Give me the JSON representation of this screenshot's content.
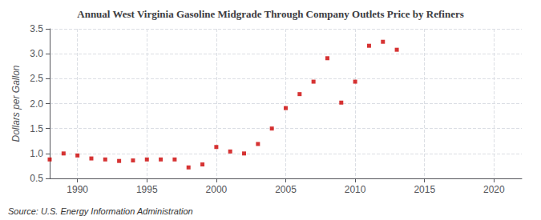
{
  "chart_data": {
    "type": "scatter",
    "title": "Annual West Virginia Gasoline Midgrade Through Company Outlets Price by Refiners",
    "ylabel": "Dollars per Gallon",
    "annotation": "Source: U.S. Energy Information Administration",
    "x": [
      1988,
      1989,
      1990,
      1991,
      1992,
      1993,
      1994,
      1995,
      1996,
      1997,
      1998,
      1999,
      2000,
      2001,
      2002,
      2003,
      2004,
      2005,
      2006,
      2007,
      2008,
      2009,
      2010,
      2011,
      2012,
      2013
    ],
    "values": [
      0.88,
      1.0,
      0.96,
      0.9,
      0.88,
      0.85,
      0.86,
      0.88,
      0.88,
      0.88,
      0.72,
      0.78,
      1.13,
      1.04,
      1.0,
      1.19,
      1.5,
      1.91,
      2.19,
      2.44,
      2.91,
      2.02,
      2.44,
      3.16,
      3.24,
      3.08
    ],
    "color": "#cc0000",
    "marker": "square",
    "xlim": [
      1988,
      2022
    ],
    "xticks": [
      1990,
      1995,
      2000,
      2005,
      2010,
      2015,
      2020
    ],
    "ylim": [
      0.5,
      3.5
    ],
    "yticks": [
      0.5,
      {
        "value": 1,
        "label": "1.0"
      },
      1.5,
      {
        "value": 2,
        "label": "2.0"
      },
      2.5,
      {
        "value": 3,
        "label": "3.0"
      },
      3.5
    ],
    "grid": true
  }
}
